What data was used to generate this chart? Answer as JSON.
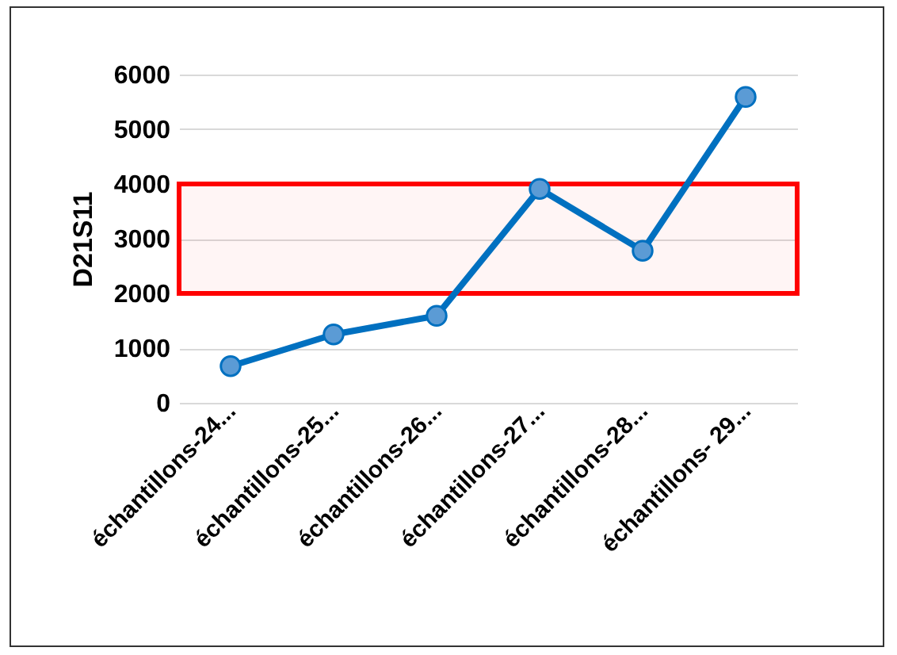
{
  "chart_data": {
    "type": "line",
    "ylabel": "D21S11",
    "categories": [
      "échantillons-24...",
      "échantillons-25...",
      "échantillons-26...",
      "échantillons-27...",
      "échantillons-28...",
      "échantillons- 29..."
    ],
    "series": [
      {
        "color": "#0070c0",
        "values": [
          670,
          1250,
          1590,
          3910,
          2780,
          5590
        ]
      }
    ],
    "ylim": [
      0,
      6000
    ],
    "yticks": [
      0,
      1000,
      2000,
      3000,
      4000,
      5000,
      6000
    ],
    "grid": "y",
    "marker": "circle",
    "line_style": "solid",
    "bands": [
      {
        "axis": "y",
        "from": 2000,
        "to": 4000,
        "color": "#ff0000"
      }
    ]
  }
}
